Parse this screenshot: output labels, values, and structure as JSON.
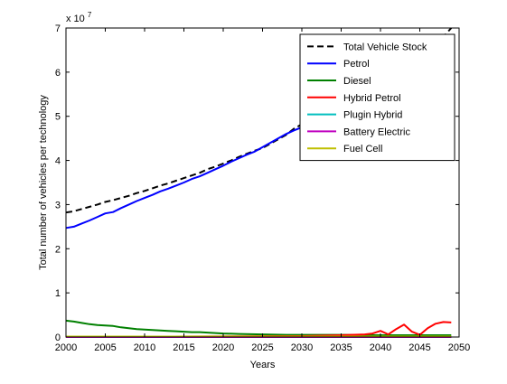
{
  "chart_data": {
    "type": "line",
    "title": "",
    "xlabel": "Years",
    "ylabel": "Total number of vehicles per technology",
    "y_exponent_label": "x 10",
    "y_exponent_power": "7",
    "xlim": [
      2000,
      2050
    ],
    "ylim": [
      0,
      7
    ],
    "xticks": [
      2000,
      2005,
      2010,
      2015,
      2020,
      2025,
      2030,
      2035,
      2040,
      2045,
      2050
    ],
    "yticks": [
      0,
      1,
      2,
      3,
      4,
      5,
      6,
      7
    ],
    "xtick_labels": [
      "2000",
      "2005",
      "2010",
      "2015",
      "2020",
      "2025",
      "2030",
      "2035",
      "2040",
      "2045",
      "2050"
    ],
    "ytick_labels": [
      "0",
      "1",
      "2",
      "3",
      "4",
      "5",
      "6",
      "7"
    ],
    "grid": false,
    "legend_position": "top-right",
    "series": [
      {
        "name": "Total Vehicle Stock",
        "color": "#000000",
        "dash": "dashed",
        "x": [
          2000,
          2001,
          2002,
          2003,
          2004,
          2005,
          2006,
          2007,
          2008,
          2009,
          2010,
          2011,
          2012,
          2013,
          2014,
          2015,
          2016,
          2017,
          2018,
          2019,
          2020,
          2021,
          2022,
          2023,
          2024,
          2025,
          2026,
          2027,
          2028,
          2029,
          2030,
          2031,
          2032,
          2033,
          2034,
          2035,
          2036,
          2037,
          2038,
          2039,
          2040,
          2041,
          2042,
          2043,
          2044,
          2045,
          2046,
          2047,
          2048,
          2049
        ],
        "values": [
          2.82,
          2.85,
          2.9,
          2.95,
          3.0,
          3.06,
          3.1,
          3.15,
          3.2,
          3.26,
          3.31,
          3.37,
          3.43,
          3.48,
          3.54,
          3.6,
          3.66,
          3.72,
          3.8,
          3.86,
          3.93,
          4.0,
          4.08,
          4.15,
          4.22,
          4.28,
          4.38,
          4.48,
          4.58,
          4.72,
          4.82,
          4.92,
          5.02,
          5.12,
          5.22,
          5.32,
          5.42,
          5.52,
          5.62,
          5.72,
          5.82,
          5.93,
          6.04,
          6.15,
          6.27,
          6.4,
          6.53,
          6.66,
          6.8,
          7.0
        ]
      },
      {
        "name": "Petrol",
        "color": "#0000ff",
        "dash": "solid",
        "x": [
          2000,
          2001,
          2002,
          2003,
          2004,
          2005,
          2006,
          2007,
          2008,
          2009,
          2010,
          2011,
          2012,
          2013,
          2014,
          2015,
          2016,
          2017,
          2018,
          2019,
          2020,
          2021,
          2022,
          2023,
          2024,
          2025,
          2026,
          2027,
          2028,
          2029,
          2030
        ],
        "values": [
          2.47,
          2.5,
          2.57,
          2.64,
          2.72,
          2.8,
          2.83,
          2.92,
          3.0,
          3.08,
          3.15,
          3.22,
          3.3,
          3.36,
          3.43,
          3.5,
          3.58,
          3.64,
          3.72,
          3.8,
          3.88,
          3.97,
          4.05,
          4.13,
          4.2,
          4.3,
          4.4,
          4.5,
          4.6,
          4.68,
          4.75
        ]
      },
      {
        "name": "Diesel",
        "color": "#008000",
        "dash": "solid",
        "x": [
          2000,
          2001,
          2002,
          2003,
          2004,
          2005,
          2006,
          2007,
          2008,
          2009,
          2010,
          2011,
          2012,
          2013,
          2014,
          2015,
          2016,
          2017,
          2018,
          2019,
          2020,
          2022,
          2025,
          2028,
          2030,
          2032,
          2035,
          2038,
          2040,
          2042,
          2044,
          2046,
          2048,
          2049
        ],
        "values": [
          0.37,
          0.35,
          0.32,
          0.29,
          0.27,
          0.26,
          0.25,
          0.22,
          0.2,
          0.18,
          0.17,
          0.16,
          0.15,
          0.14,
          0.13,
          0.12,
          0.11,
          0.11,
          0.1,
          0.09,
          0.08,
          0.07,
          0.06,
          0.05,
          0.05,
          0.05,
          0.05,
          0.04,
          0.04,
          0.04,
          0.04,
          0.04,
          0.04,
          0.04
        ]
      },
      {
        "name": "Hybrid Petrol",
        "color": "#ff0000",
        "dash": "solid",
        "x": [
          2000,
          2030,
          2035,
          2038,
          2039,
          2040,
          2041,
          2042,
          2043,
          2044,
          2045,
          2046,
          2047,
          2048,
          2049
        ],
        "values": [
          0.0,
          0.02,
          0.04,
          0.06,
          0.08,
          0.14,
          0.06,
          0.18,
          0.28,
          0.12,
          0.05,
          0.2,
          0.3,
          0.34,
          0.33
        ]
      },
      {
        "name": "Plugin Hybrid",
        "color": "#00bfbf",
        "dash": "solid",
        "x": [
          2000,
          2049
        ],
        "values": [
          0.0,
          0.0
        ]
      },
      {
        "name": "Battery Electric",
        "color": "#bf00bf",
        "dash": "solid",
        "x": [
          2000,
          2049
        ],
        "values": [
          0.0,
          0.0
        ]
      },
      {
        "name": "Fuel Cell",
        "color": "#bfbf00",
        "dash": "solid",
        "x": [
          2000,
          2049
        ],
        "values": [
          0.01,
          0.01
        ]
      }
    ]
  }
}
